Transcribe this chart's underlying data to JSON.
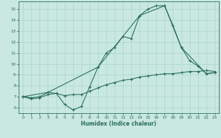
{
  "title": "",
  "xlabel": "Humidex (Indice chaleur)",
  "ylabel": "",
  "bg_color": "#c8e8e0",
  "grid_color": "#aad4c8",
  "line_color": "#2a6b5e",
  "xlim": [
    -0.5,
    23.5
  ],
  "ylim": [
    5.5,
    15.7
  ],
  "x_ticks": [
    0,
    1,
    2,
    3,
    4,
    5,
    6,
    7,
    8,
    9,
    10,
    11,
    12,
    13,
    14,
    15,
    16,
    17,
    18,
    19,
    20,
    21,
    22,
    23
  ],
  "y_ticks": [
    6,
    7,
    8,
    9,
    10,
    11,
    12,
    13,
    14,
    15
  ],
  "line1_x": [
    0,
    1,
    2,
    3,
    4,
    5,
    6,
    7,
    8,
    9,
    10,
    11,
    12,
    13,
    14,
    15,
    16,
    17,
    18,
    19,
    20,
    21,
    22,
    23
  ],
  "line1_y": [
    7.0,
    6.8,
    6.9,
    7.2,
    7.3,
    6.3,
    5.8,
    6.1,
    7.9,
    9.7,
    11.0,
    11.5,
    12.5,
    12.3,
    14.4,
    15.0,
    15.3,
    15.3,
    13.5,
    11.5,
    10.3,
    9.8,
    9.1,
    9.2
  ],
  "line2_x": [
    0,
    1,
    2,
    3,
    4,
    5,
    6,
    7,
    8,
    9,
    10,
    11,
    12,
    13,
    14,
    15,
    16,
    17,
    18,
    19,
    20,
    21,
    22,
    23
  ],
  "line2_y": [
    7.0,
    6.9,
    7.0,
    7.4,
    7.3,
    7.1,
    7.2,
    7.2,
    7.5,
    7.8,
    8.1,
    8.3,
    8.5,
    8.6,
    8.8,
    8.9,
    9.0,
    9.1,
    9.1,
    9.2,
    9.3,
    9.3,
    9.4,
    9.3
  ],
  "line3_x": [
    0,
    3,
    9,
    14,
    17,
    19,
    22,
    23
  ],
  "line3_y": [
    7.0,
    7.4,
    9.7,
    14.4,
    15.3,
    11.5,
    9.1,
    9.2
  ]
}
